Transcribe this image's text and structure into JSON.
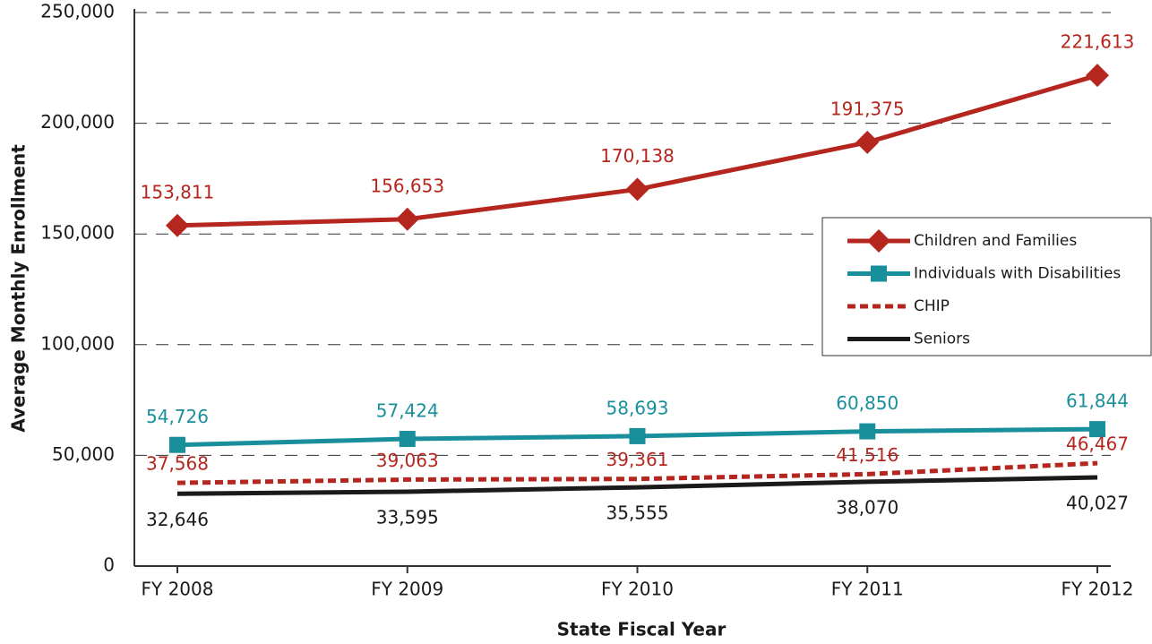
{
  "chart_data": {
    "type": "line",
    "x_label": "State Fiscal Year",
    "y_label": "Average Monthly Enrollment",
    "categories": [
      "FY 2008",
      "FY 2009",
      "FY 2010",
      "FY 2011",
      "FY 2012"
    ],
    "ylim": [
      0,
      250000
    ],
    "yticks": [
      0,
      {
        "value": 50000,
        "label": "50,000"
      },
      {
        "value": 100000,
        "label": "100,000"
      },
      {
        "value": 150000,
        "label": "150,000"
      },
      {
        "value": 200000,
        "label": "200,000"
      },
      {
        "value": 250000,
        "label": "250,000"
      }
    ],
    "grid": true,
    "legend": "right",
    "series": [
      {
        "name": "Children and Families",
        "color": "#b5261e",
        "marker": "diamond",
        "line_style": "solid",
        "values": [
          153811,
          156653,
          170138,
          191375,
          221613
        ],
        "value_labels": [
          "153,811",
          "156,653",
          "170,138",
          "191,375",
          "221,613"
        ]
      },
      {
        "name": "Individuals with Disabilities",
        "color": "#1a8f9c",
        "marker": "square",
        "line_style": "solid",
        "values": [
          54726,
          57424,
          58693,
          60850,
          61844
        ],
        "value_labels": [
          "54,726",
          "57,424",
          "58,693",
          "60,850",
          "61,844"
        ]
      },
      {
        "name": "CHIP",
        "color": "#b5261e",
        "marker": "none",
        "line_style": "dashed",
        "values": [
          37568,
          39063,
          39361,
          41516,
          46467
        ],
        "value_labels": [
          "37,568",
          "39,063",
          "39,361",
          "41,516",
          "46,467"
        ]
      },
      {
        "name": "Seniors",
        "color": "#1a1a1a",
        "marker": "none",
        "line_style": "solid",
        "values": [
          32646,
          33595,
          35555,
          38070,
          40027
        ],
        "value_labels": [
          "32,646",
          "33,595",
          "35,555",
          "38,070",
          "40,027"
        ]
      }
    ]
  }
}
